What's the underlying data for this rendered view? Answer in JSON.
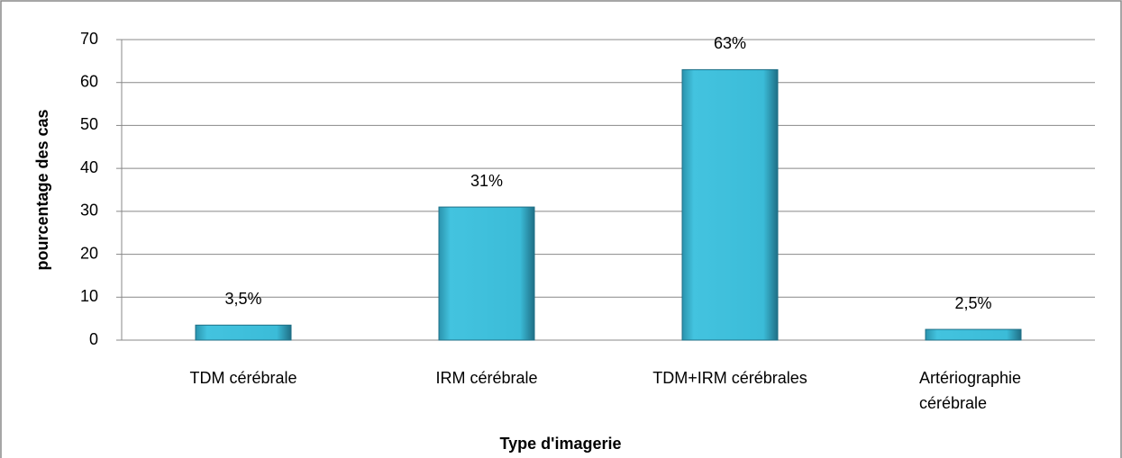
{
  "chart_data": {
    "type": "bar",
    "categories": [
      "TDM cérébrale",
      "IRM cérébrale",
      "TDM+IRM cérébrales",
      "Artériographie cérébrale"
    ],
    "values": [
      3.5,
      31,
      63,
      2.5
    ],
    "value_labels": [
      "3,5%",
      "31%",
      "63%",
      "2,5%"
    ],
    "color": "#3bbcd8",
    "xlabel": "Type d'imagerie",
    "ylabel": "pourcentage  des  cas",
    "ylim": [
      0,
      70
    ],
    "yticks": [
      0,
      10,
      20,
      30,
      40,
      50,
      60,
      70
    ],
    "grid": true
  }
}
